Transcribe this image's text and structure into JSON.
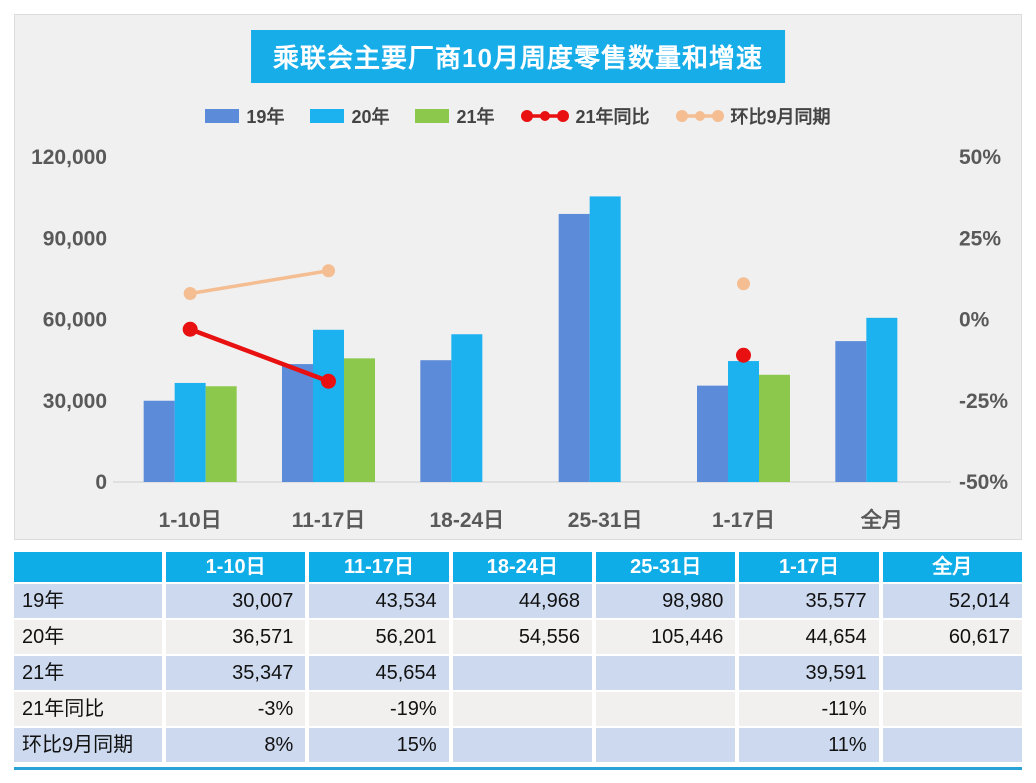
{
  "chart": {
    "title": "乘联会主要厂商10月周度零售数量和增速",
    "colors": {
      "title_bg": "#17ade9",
      "panel_bg": "#f0f0f0",
      "axis_text": "#595959",
      "baseline": "#d9d9d9",
      "bar_19": "#5b8bd9",
      "bar_20": "#1cb2ef",
      "bar_21": "#8cc84c",
      "line_yoy": "#e81010",
      "line_mom": "#f4bd92"
    }
  },
  "chart_data": {
    "type": "bar",
    "title": "乘联会主要厂商10月周度零售数量和增速",
    "categories": [
      "1-10日",
      "11-17日",
      "18-24日",
      "25-31日",
      "1-17日",
      "全月"
    ],
    "bar_series": [
      {
        "name": "19年",
        "color": "#5b8bd9",
        "values": [
          30007,
          43534,
          44968,
          98980,
          35577,
          52014
        ]
      },
      {
        "name": "20年",
        "color": "#1cb2ef",
        "values": [
          36571,
          56201,
          54556,
          105446,
          44654,
          60617
        ]
      },
      {
        "name": "21年",
        "color": "#8cc84c",
        "values": [
          35347,
          45654,
          null,
          null,
          39591,
          null
        ]
      }
    ],
    "line_series": [
      {
        "name": "21年同比",
        "color": "#e81010",
        "axis": "right",
        "values": [
          -3,
          -19,
          null,
          null,
          -11,
          null
        ],
        "dot_r": 7.5,
        "width": 4.5
      },
      {
        "name": "环比9月同期",
        "color": "#f4bd92",
        "axis": "right",
        "values": [
          8,
          15,
          null,
          null,
          11,
          null
        ],
        "dot_r": 6.5,
        "width": 3.5
      }
    ],
    "left_axis": {
      "min": 0,
      "max": 120000,
      "ticks": [
        {
          "label": "120,000",
          "value": 120000
        },
        {
          "label": "90,000",
          "value": 90000
        },
        {
          "label": "60,000",
          "value": 60000
        },
        {
          "label": "30,000",
          "value": 30000
        },
        {
          "label": "0",
          "value": 0
        }
      ]
    },
    "right_axis": {
      "min": -50,
      "max": 50,
      "ticks": [
        {
          "label": "50%",
          "value": 50
        },
        {
          "label": "25%",
          "value": 25
        },
        {
          "label": "0%",
          "value": 0
        },
        {
          "label": "-25%",
          "value": -25
        },
        {
          "label": "-50%",
          "value": -50
        }
      ]
    },
    "grid": false,
    "legend_position": "top",
    "legend": [
      {
        "label": "19年",
        "type": "bar",
        "color": "#5b8bd9"
      },
      {
        "label": "20年",
        "type": "bar",
        "color": "#1cb2ef"
      },
      {
        "label": "21年",
        "type": "bar",
        "color": "#8cc84c"
      },
      {
        "label": "21年同比",
        "type": "line",
        "color": "#e81010"
      },
      {
        "label": "环比9月同期",
        "type": "line",
        "color": "#f4bd92"
      }
    ]
  },
  "table": {
    "header": [
      "",
      "1-10日",
      "11-17日",
      "18-24日",
      "25-31日",
      "1-17日",
      "全月"
    ],
    "rows": [
      {
        "label": "19年",
        "cells": [
          "30,007",
          "43,534",
          "44,968",
          "98,980",
          "35,577",
          "52,014"
        ],
        "bg": "#cdd9ee"
      },
      {
        "label": "20年",
        "cells": [
          "36,571",
          "56,201",
          "54,556",
          "105,446",
          "44,654",
          "60,617"
        ],
        "bg": "#f1f0ee"
      },
      {
        "label": "21年",
        "cells": [
          "35,347",
          "45,654",
          "",
          "",
          "39,591",
          ""
        ],
        "bg": "#cdd9ee"
      },
      {
        "label": "21年同比",
        "cells": [
          "-3%",
          "-19%",
          "",
          "",
          "-11%",
          ""
        ],
        "bg": "#f1f0ee"
      },
      {
        "label": "环比9月同期",
        "cells": [
          "8%",
          "15%",
          "",
          "",
          "11%",
          ""
        ],
        "bg": "#cdd9ee"
      }
    ]
  }
}
